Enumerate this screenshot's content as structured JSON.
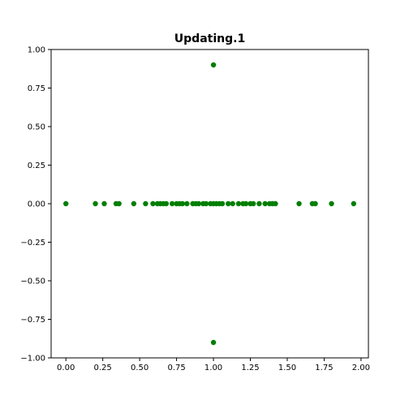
{
  "chart_data": {
    "type": "scatter",
    "title": "Updating.1",
    "xlabel": "",
    "ylabel": "",
    "xlim": [
      -0.1,
      2.05
    ],
    "ylim": [
      -1.0,
      1.0
    ],
    "xticks": [
      "0.00",
      "0.25",
      "0.50",
      "0.75",
      "1.00",
      "1.25",
      "1.50",
      "1.75",
      "2.00"
    ],
    "yticks": [
      "1.00",
      "0.75",
      "0.50",
      "0.25",
      "0.00",
      "−0.25",
      "−0.50",
      "−0.75",
      "−1.00"
    ],
    "grid": false,
    "point_color": "#007f00",
    "series": [
      {
        "points": [
          [
            0.0,
            0.0
          ],
          [
            0.2,
            0.0
          ],
          [
            0.26,
            0.0
          ],
          [
            0.34,
            0.0
          ],
          [
            0.36,
            0.0
          ],
          [
            0.46,
            0.0
          ],
          [
            0.54,
            0.0
          ],
          [
            0.59,
            0.0
          ],
          [
            0.62,
            0.0
          ],
          [
            0.64,
            0.0
          ],
          [
            0.66,
            0.0
          ],
          [
            0.68,
            0.0
          ],
          [
            0.72,
            0.0
          ],
          [
            0.75,
            0.0
          ],
          [
            0.77,
            0.0
          ],
          [
            0.79,
            0.0
          ],
          [
            0.82,
            0.0
          ],
          [
            0.86,
            0.0
          ],
          [
            0.88,
            0.0
          ],
          [
            0.9,
            0.0
          ],
          [
            0.93,
            0.0
          ],
          [
            0.95,
            0.0
          ],
          [
            0.98,
            0.0
          ],
          [
            1.0,
            0.0
          ],
          [
            1.02,
            0.0
          ],
          [
            1.04,
            0.0
          ],
          [
            1.06,
            0.0
          ],
          [
            1.1,
            0.0
          ],
          [
            1.13,
            0.0
          ],
          [
            1.17,
            0.0
          ],
          [
            1.2,
            0.0
          ],
          [
            1.22,
            0.0
          ],
          [
            1.25,
            0.0
          ],
          [
            1.27,
            0.0
          ],
          [
            1.31,
            0.0
          ],
          [
            1.35,
            0.0
          ],
          [
            1.38,
            0.0
          ],
          [
            1.4,
            0.0
          ],
          [
            1.42,
            0.0
          ],
          [
            1.58,
            0.0
          ],
          [
            1.67,
            0.0
          ],
          [
            1.69,
            0.0
          ],
          [
            1.8,
            0.0
          ],
          [
            1.95,
            0.0
          ],
          [
            1.0,
            0.9
          ],
          [
            1.0,
            -0.9
          ]
        ]
      }
    ]
  }
}
